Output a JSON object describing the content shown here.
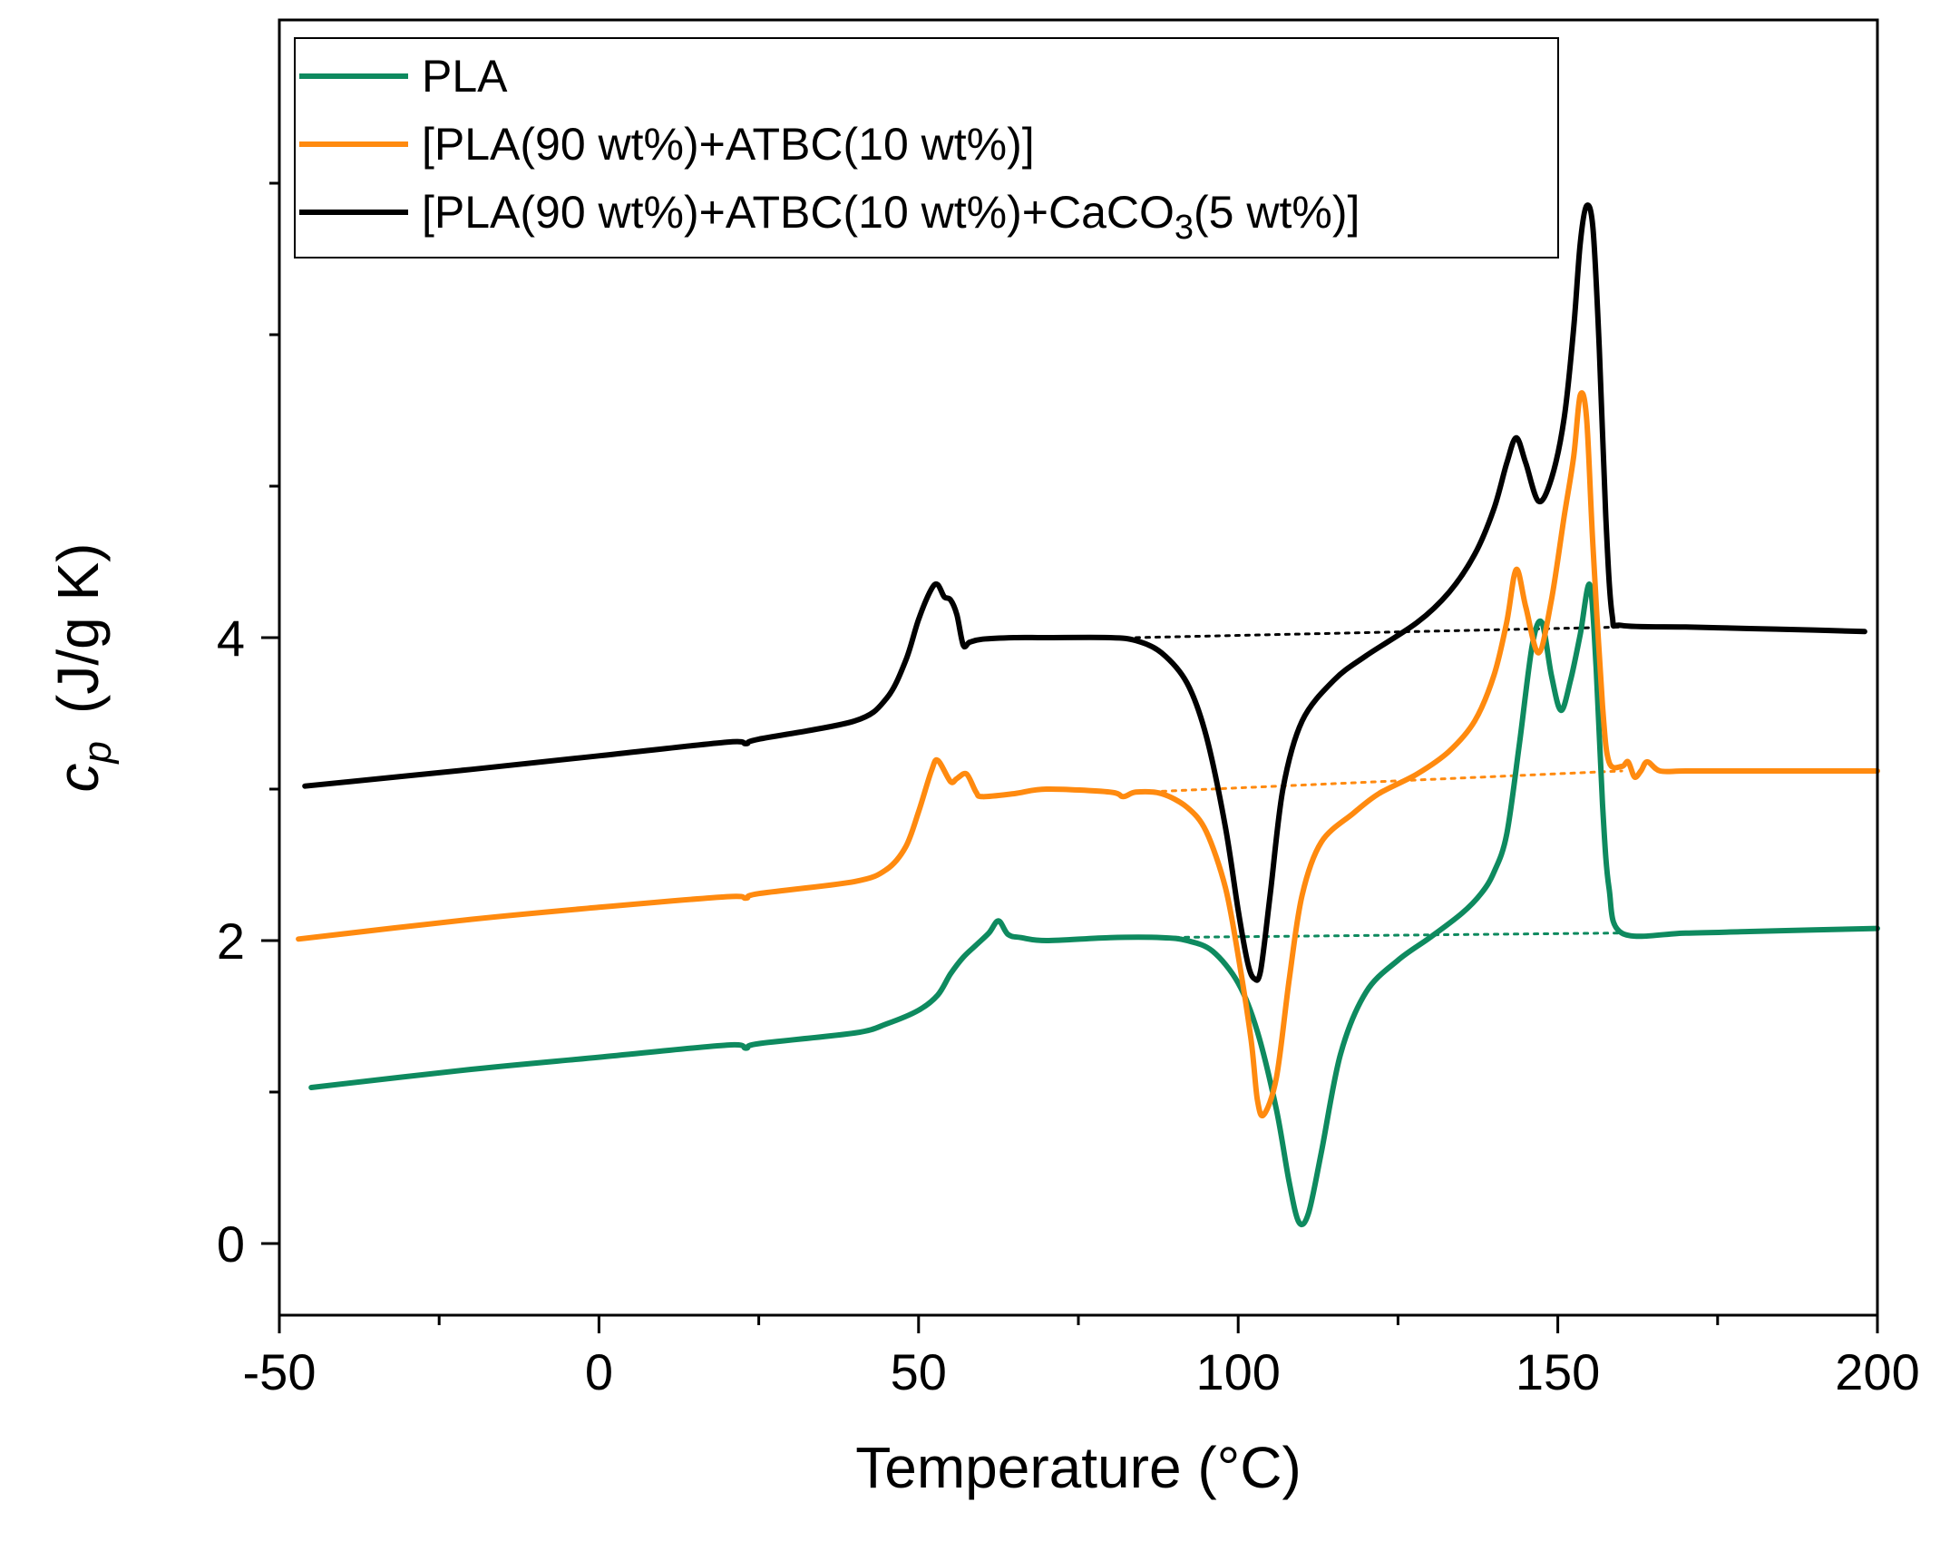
{
  "chart_data": {
    "type": "line",
    "title": "",
    "xlabel": "Temperature (°C)",
    "ylabel_symbol": "c",
    "ylabel_subscript": "p",
    "ylabel_units": "(J/g K)",
    "xlim": [
      -50,
      200
    ],
    "ylim": [
      -0.5,
      8.0
    ],
    "x_ticks": [
      -50,
      0,
      50,
      100,
      150,
      200
    ],
    "x_tick_labels": [
      "-50",
      "0",
      "50",
      "100",
      "150",
      "200"
    ],
    "x_minor_ticks": [
      -25,
      25,
      75,
      125,
      175
    ],
    "y_ticks": [
      0,
      2,
      4
    ],
    "y_tick_labels": [
      "0",
      "2",
      "4"
    ],
    "y_minor_ticks": [
      1,
      3,
      5,
      6,
      7
    ],
    "grid": false,
    "legend_position": "top-left",
    "series": [
      {
        "name": "PLA",
        "legend_label": "PLA",
        "color": "#0e8a5f",
        "x": [
          -45,
          -20,
          0,
          20,
          23,
          25,
          40,
          45,
          50,
          53,
          55,
          57,
          59,
          61,
          62.5,
          64,
          66,
          70,
          80,
          88,
          92,
          96,
          100,
          103,
          106,
          108,
          109.5,
          111,
          113,
          116,
          120,
          125,
          130,
          135,
          138,
          140,
          142,
          144,
          146,
          147.5,
          149,
          150.5,
          152,
          153.5,
          155,
          156,
          157,
          158,
          160,
          170,
          180,
          190,
          200
        ],
        "y": [
          1.03,
          1.15,
          1.23,
          1.31,
          1.29,
          1.32,
          1.39,
          1.45,
          1.54,
          1.64,
          1.78,
          1.89,
          1.97,
          2.05,
          2.13,
          2.04,
          2.02,
          2.0,
          2.02,
          2.02,
          2.0,
          1.93,
          1.72,
          1.4,
          0.88,
          0.4,
          0.14,
          0.2,
          0.6,
          1.25,
          1.66,
          1.87,
          2.02,
          2.18,
          2.31,
          2.45,
          2.7,
          3.3,
          3.95,
          4.1,
          3.75,
          3.52,
          3.72,
          4.02,
          4.35,
          3.8,
          2.9,
          2.35,
          2.05,
          2.05,
          2.06,
          2.07,
          2.08
        ]
      },
      {
        "name": "PLA(90 wt%)+ATBC(10 wt%)",
        "legend_label": "[PLA(90 wt%)+ATBC(10 wt%)]",
        "color": "#ff8a0f",
        "x": [
          -47,
          -20,
          0,
          20,
          23,
          25,
          40,
          45,
          48,
          50,
          52,
          53,
          55,
          56,
          57.5,
          59,
          60,
          65,
          70,
          80,
          82,
          84,
          88,
          92,
          95,
          98,
          100,
          102,
          103,
          104,
          106,
          108,
          110,
          113,
          118,
          122,
          128,
          133,
          137,
          140,
          142,
          143.5,
          145,
          147,
          149,
          151,
          152.5,
          153.5,
          154.5,
          155.5,
          157,
          158,
          160,
          161,
          162,
          163,
          164,
          166,
          170,
          180,
          190,
          200
        ],
        "y": [
          2.01,
          2.14,
          2.22,
          2.29,
          2.28,
          2.31,
          2.39,
          2.47,
          2.62,
          2.85,
          3.12,
          3.19,
          3.05,
          3.07,
          3.1,
          2.98,
          2.95,
          2.97,
          3.0,
          2.98,
          2.95,
          2.98,
          2.97,
          2.88,
          2.72,
          2.35,
          1.9,
          1.35,
          0.95,
          0.85,
          1.1,
          1.75,
          2.3,
          2.65,
          2.84,
          2.97,
          3.1,
          3.25,
          3.45,
          3.75,
          4.1,
          4.45,
          4.2,
          3.9,
          4.25,
          4.8,
          5.2,
          5.6,
          5.45,
          4.6,
          3.55,
          3.18,
          3.15,
          3.18,
          3.08,
          3.12,
          3.18,
          3.12,
          3.12,
          3.12,
          3.12,
          3.12
        ]
      },
      {
        "name": "PLA(90 wt%)+ATBC(10 wt%)+CaCO3(5 wt%)",
        "legend_label": "[PLA(90 wt%)+ATBC(10 wt%)+CaCO",
        "legend_subscript": "3",
        "legend_suffix": "(5 wt%)]",
        "color": "#000000",
        "x": [
          -46,
          -20,
          0,
          20,
          23,
          25,
          40,
          45,
          48,
          50,
          52,
          53,
          54,
          55,
          56,
          57,
          58,
          60,
          65,
          70,
          80,
          84,
          88,
          92,
          95,
          98,
          100,
          101.5,
          102.5,
          103.5,
          105,
          107,
          110,
          115,
          120,
          128,
          133,
          137,
          140,
          142,
          143.5,
          145,
          147,
          149,
          151,
          152.5,
          153.5,
          154.5,
          155.5,
          156.5,
          157.5,
          158.5,
          160,
          170,
          180,
          190,
          198
        ],
        "y": [
          3.02,
          3.13,
          3.22,
          3.31,
          3.3,
          3.33,
          3.45,
          3.6,
          3.85,
          4.12,
          4.32,
          4.35,
          4.27,
          4.25,
          4.15,
          3.95,
          3.97,
          3.99,
          4.0,
          4.0,
          4.0,
          3.98,
          3.9,
          3.7,
          3.35,
          2.75,
          2.2,
          1.85,
          1.75,
          1.8,
          2.3,
          3.0,
          3.45,
          3.72,
          3.88,
          4.1,
          4.3,
          4.55,
          4.85,
          5.15,
          5.32,
          5.15,
          4.9,
          5.05,
          5.45,
          6.05,
          6.6,
          6.85,
          6.7,
          5.9,
          4.8,
          4.15,
          4.08,
          4.07,
          4.06,
          4.05,
          4.04
        ]
      }
    ],
    "baselines": [
      {
        "name": "PLA baseline",
        "color": "#0e8a5f",
        "x": [
          87,
          160
        ],
        "y": [
          2.02,
          2.05
        ]
      },
      {
        "name": "PLA+ATBC baseline",
        "color": "#ff8a0f",
        "x": [
          85,
          160
        ],
        "y": [
          2.98,
          3.12
        ]
      },
      {
        "name": "PLA+ATBC+CaCO3 baseline",
        "color": "#000000",
        "x": [
          84,
          160
        ],
        "y": [
          4.0,
          4.07
        ]
      }
    ]
  }
}
